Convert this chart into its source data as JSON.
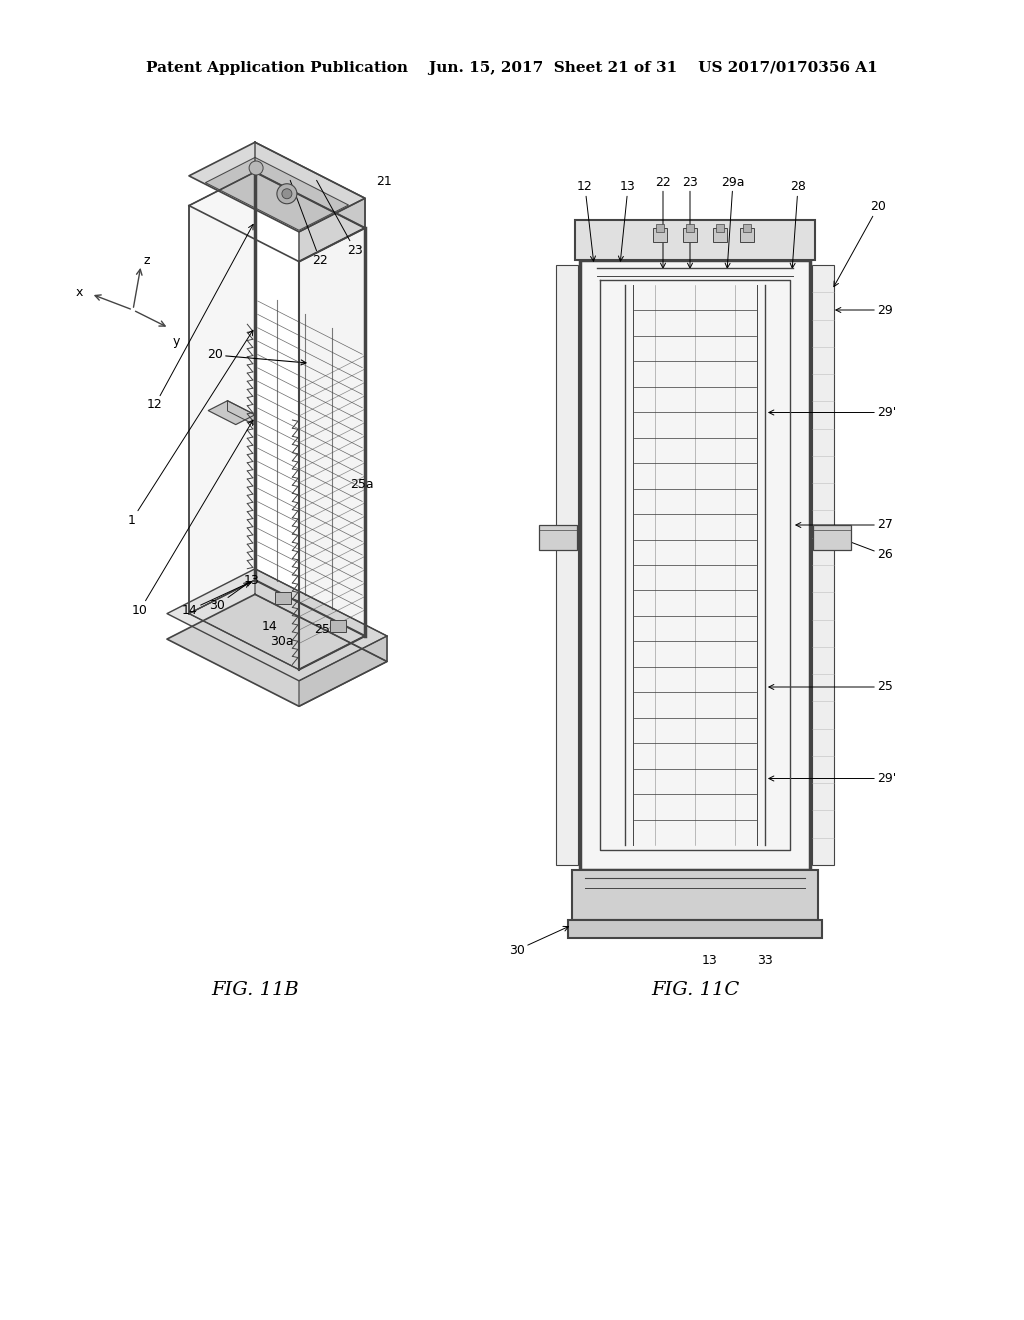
{
  "background_color": "#ffffff",
  "header_text": "Patent Application Publication    Jun. 15, 2017  Sheet 21 of 31    US 2017/0170356 A1",
  "header_fontsize": 11,
  "fig_width": 10.24,
  "fig_height": 13.2,
  "fig11b_label": "FIG. 11B",
  "fig11c_label": "FIG. 11C",
  "line_color": "#444444",
  "text_color": "#000000",
  "label_fontsize": 9,
  "figcaption_fontsize": 14
}
